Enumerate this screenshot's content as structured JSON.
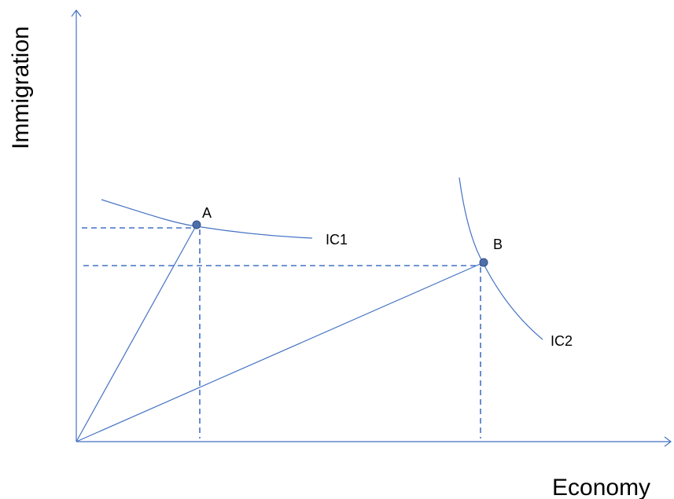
{
  "axes": {
    "x_label": "Economy",
    "y_label": "Immigration"
  },
  "points": {
    "a": "A",
    "b": "B"
  },
  "curves": {
    "ic1": "IC1",
    "ic2": "IC2"
  },
  "colors": {
    "line": "#4472c4",
    "point_fill": "#4f6fa8",
    "text": "#000000"
  }
}
